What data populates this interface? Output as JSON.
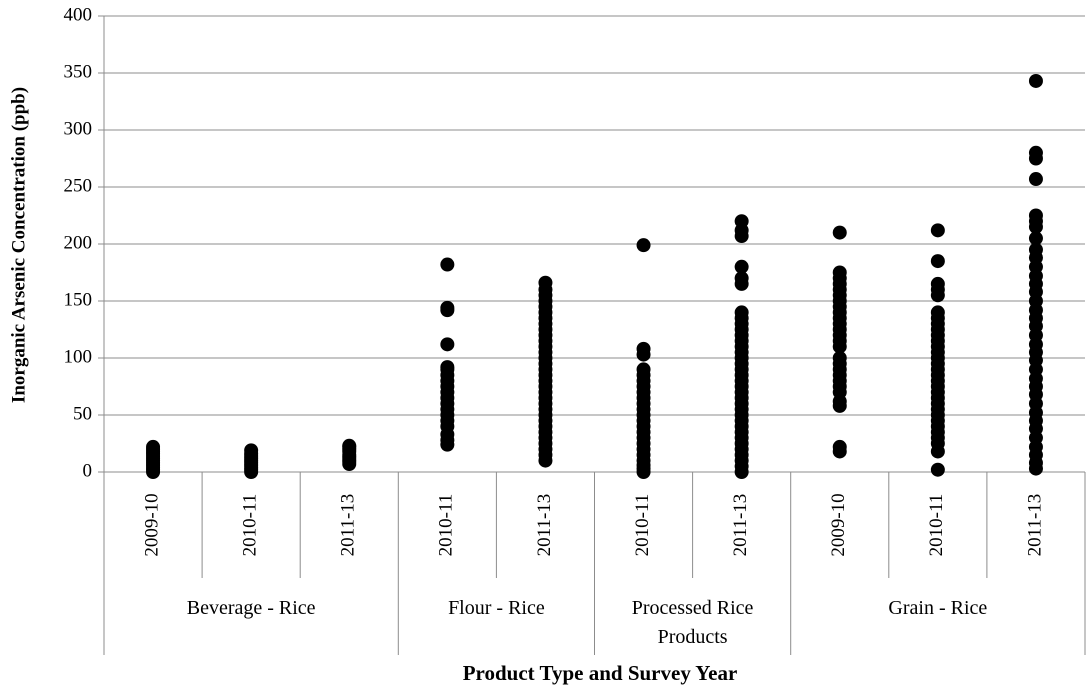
{
  "chart_data": {
    "type": "strip",
    "y_label": "Inorganic Arsenic Concentration (ppb)",
    "x_label": "Product Type and Survey Year",
    "color": "#000000",
    "ylim": [
      0,
      400
    ],
    "yticks": [
      0,
      50,
      100,
      150,
      200,
      250,
      300,
      350,
      400
    ],
    "grid": true,
    "groups": [
      {
        "name": "Beverage - Rice",
        "categories": [
          "2009-10",
          "2010-11",
          "2011-13"
        ],
        "values": [
          [
            0,
            2,
            4,
            6,
            8,
            10,
            12,
            14,
            16,
            18,
            20,
            22
          ],
          [
            0,
            2,
            4,
            6,
            8,
            10,
            12,
            14,
            16,
            19
          ],
          [
            7,
            9,
            11,
            13,
            15,
            18,
            20,
            22,
            23
          ]
        ]
      },
      {
        "name": "Flour - Rice",
        "categories": [
          "2010-11",
          "2011-13"
        ],
        "values": [
          [
            24,
            28,
            33,
            40,
            45,
            50,
            55,
            60,
            65,
            70,
            75,
            80,
            85,
            90,
            92,
            112,
            142,
            144,
            182
          ],
          [
            10,
            15,
            20,
            25,
            30,
            35,
            40,
            45,
            50,
            55,
            60,
            65,
            70,
            75,
            80,
            85,
            90,
            95,
            100,
            105,
            110,
            115,
            120,
            125,
            130,
            135,
            140,
            145,
            150,
            155,
            160,
            166
          ]
        ]
      },
      {
        "name": "Processed Rice Products",
        "categories": [
          "2010-11",
          "2011-13"
        ],
        "values": [
          [
            0,
            3,
            6,
            10,
            15,
            20,
            25,
            30,
            35,
            40,
            45,
            50,
            55,
            60,
            65,
            70,
            75,
            80,
            85,
            90,
            103,
            108,
            199
          ],
          [
            0,
            5,
            10,
            15,
            20,
            25,
            30,
            35,
            40,
            45,
            50,
            55,
            60,
            65,
            70,
            75,
            80,
            85,
            90,
            95,
            100,
            105,
            110,
            115,
            120,
            125,
            130,
            135,
            140,
            165,
            170,
            180,
            207,
            212,
            220
          ]
        ]
      },
      {
        "name": "Grain - Rice",
        "categories": [
          "2009-10",
          "2010-11",
          "2011-13"
        ],
        "values": [
          [
            18,
            22,
            58,
            62,
            70,
            75,
            80,
            85,
            90,
            95,
            100,
            110,
            115,
            120,
            125,
            130,
            135,
            140,
            145,
            150,
            155,
            160,
            165,
            170,
            175,
            210
          ],
          [
            2,
            18,
            25,
            30,
            35,
            40,
            45,
            50,
            55,
            60,
            65,
            70,
            75,
            80,
            85,
            90,
            95,
            100,
            105,
            110,
            115,
            120,
            125,
            130,
            135,
            140,
            155,
            160,
            165,
            185,
            212
          ],
          [
            3,
            8,
            15,
            22,
            30,
            38,
            45,
            52,
            60,
            68,
            75,
            82,
            90,
            98,
            105,
            112,
            120,
            128,
            135,
            142,
            150,
            158,
            165,
            172,
            180,
            188,
            195,
            205,
            215,
            220,
            225,
            257,
            275,
            280,
            343
          ]
        ]
      }
    ]
  }
}
